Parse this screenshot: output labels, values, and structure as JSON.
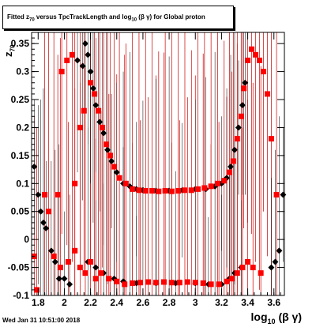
{
  "title_parts": {
    "pre": "Fitted  z",
    "sub1": "70",
    "mid": " versus TpcTrackLength and log",
    "sub2": "10",
    "post": " (β γ) for Global proton"
  },
  "ylabel_parts": {
    "main": "z",
    "sub": "70"
  },
  "xlabel_parts": {
    "main": "log",
    "sub": "10",
    "post": " (β γ)"
  },
  "footer": "Wed Jan 31 10:51:00 2018",
  "colors": {
    "series_black": "#000000",
    "series_red": "#ff0000",
    "errorbar_red": "#cc0000",
    "frame": "#000000"
  },
  "chart_data": {
    "type": "scatter",
    "title": "Fitted z70 versus TpcTrackLength and log10(βγ) for Global proton",
    "xlabel": "log10 (β γ)",
    "ylabel": "z70",
    "xlim": [
      1.75,
      3.68
    ],
    "ylim": [
      -0.1,
      0.37
    ],
    "x_ticks": [
      1.8,
      2.0,
      2.2,
      2.4,
      2.6,
      2.8,
      3.0,
      3.2,
      3.4,
      3.6
    ],
    "x_tick_labels": [
      "1.8",
      "2",
      "2.2",
      "2.4",
      "2.6",
      "2.8",
      "3",
      "3.2",
      "3.4",
      "3.6"
    ],
    "y_ticks": [
      -0.1,
      -0.05,
      0.0,
      0.05,
      0.1,
      0.15,
      0.2,
      0.25,
      0.3,
      0.35
    ],
    "y_tick_labels": [
      "-0.1",
      "-0.05",
      "0",
      "0.05",
      "0.1",
      "0.15",
      "0.2",
      "0.25",
      "0.3",
      "0.35"
    ],
    "grid": false,
    "series": [
      {
        "marker": "diamond",
        "color": "#000000",
        "points": [
          [
            1.77,
            0.13
          ],
          [
            1.8,
            0.08
          ],
          [
            1.82,
            0.05
          ],
          [
            1.84,
            0.03
          ],
          [
            1.86,
            0.02
          ],
          [
            1.9,
            -0.02
          ],
          [
            1.93,
            -0.04
          ],
          [
            1.96,
            -0.07
          ],
          [
            2.0,
            -0.07
          ],
          [
            2.04,
            -0.08
          ],
          [
            2.1,
            0.32
          ],
          [
            2.14,
            0.31
          ],
          [
            2.16,
            0.35
          ],
          [
            2.18,
            0.33
          ],
          [
            2.2,
            0.3
          ],
          [
            2.22,
            0.27
          ],
          [
            2.24,
            0.24
          ],
          [
            2.27,
            0.21
          ],
          [
            2.3,
            0.19
          ],
          [
            2.33,
            0.16
          ],
          [
            2.36,
            0.14
          ],
          [
            2.4,
            0.12
          ],
          [
            2.45,
            0.1
          ],
          [
            2.5,
            0.095
          ],
          [
            2.55,
            0.09
          ],
          [
            2.6,
            0.088
          ],
          [
            2.7,
            0.087
          ],
          [
            2.8,
            0.087
          ],
          [
            2.9,
            0.088
          ],
          [
            3.0,
            0.09
          ],
          [
            3.08,
            0.09
          ],
          [
            3.15,
            0.095
          ],
          [
            3.2,
            0.1
          ],
          [
            3.24,
            0.11
          ],
          [
            3.27,
            0.13
          ],
          [
            3.3,
            0.16
          ],
          [
            3.33,
            0.2
          ],
          [
            3.36,
            0.24
          ],
          [
            3.38,
            0.28
          ],
          [
            2.18,
            -0.04
          ],
          [
            2.24,
            -0.05
          ],
          [
            2.3,
            -0.06
          ],
          [
            2.38,
            -0.07
          ],
          [
            2.45,
            -0.075
          ],
          [
            2.55,
            -0.078
          ],
          [
            2.7,
            -0.078
          ],
          [
            2.85,
            -0.078
          ],
          [
            3.0,
            -0.078
          ],
          [
            3.1,
            -0.08
          ],
          [
            3.2,
            -0.08
          ],
          [
            3.26,
            -0.07
          ],
          [
            3.3,
            -0.06
          ],
          [
            3.35,
            -0.05
          ],
          [
            3.58,
            -0.05
          ],
          [
            3.61,
            -0.04
          ],
          [
            3.64,
            -0.02
          ],
          [
            3.67,
            0.08
          ]
        ]
      },
      {
        "marker": "square",
        "color": "#ff0000",
        "points": [
          [
            1.77,
            -0.03
          ],
          [
            1.79,
            -0.09
          ],
          [
            1.85,
            0.08
          ],
          [
            1.88,
            0.05
          ],
          [
            1.92,
            -0.03
          ],
          [
            1.95,
            0.08
          ],
          [
            1.98,
            0.3
          ],
          [
            2.02,
            0.32
          ],
          [
            2.06,
            0.33
          ],
          [
            2.08,
            0.1
          ],
          [
            2.12,
            0.2
          ],
          [
            2.15,
            0.23
          ],
          [
            2.2,
            0.28
          ],
          [
            2.23,
            0.26
          ],
          [
            2.26,
            0.23
          ],
          [
            2.29,
            0.2
          ],
          [
            2.32,
            0.17
          ],
          [
            2.35,
            0.15
          ],
          [
            2.38,
            0.13
          ],
          [
            2.42,
            0.11
          ],
          [
            2.47,
            0.1
          ],
          [
            2.52,
            0.09
          ],
          [
            2.57,
            0.088
          ],
          [
            2.62,
            0.087
          ],
          [
            2.67,
            0.087
          ],
          [
            2.72,
            0.086
          ],
          [
            2.77,
            0.087
          ],
          [
            2.82,
            0.086
          ],
          [
            2.87,
            0.087
          ],
          [
            2.92,
            0.088
          ],
          [
            2.97,
            0.088
          ],
          [
            3.02,
            0.09
          ],
          [
            3.07,
            0.092
          ],
          [
            3.12,
            0.095
          ],
          [
            3.17,
            0.1
          ],
          [
            3.22,
            0.105
          ],
          [
            3.26,
            0.12
          ],
          [
            3.29,
            0.14
          ],
          [
            3.32,
            0.18
          ],
          [
            3.35,
            0.22
          ],
          [
            3.37,
            0.27
          ],
          [
            3.4,
            0.32
          ],
          [
            3.43,
            0.34
          ],
          [
            3.46,
            0.33
          ],
          [
            3.49,
            0.32
          ],
          [
            3.52,
            0.3
          ],
          [
            3.55,
            0.26
          ],
          [
            3.58,
            0.18
          ],
          [
            3.62,
            0.08
          ],
          [
            1.97,
            -0.05
          ],
          [
            2.03,
            -0.04
          ],
          [
            2.08,
            -0.02
          ],
          [
            2.12,
            -0.05
          ],
          [
            2.16,
            -0.06
          ],
          [
            2.2,
            -0.04
          ],
          [
            2.24,
            -0.07
          ],
          [
            2.28,
            -0.06
          ],
          [
            2.34,
            -0.07
          ],
          [
            2.4,
            -0.075
          ],
          [
            2.46,
            -0.08
          ],
          [
            2.52,
            -0.078
          ],
          [
            2.58,
            -0.077
          ],
          [
            2.64,
            -0.076
          ],
          [
            2.7,
            -0.077
          ],
          [
            2.76,
            -0.076
          ],
          [
            2.82,
            -0.077
          ],
          [
            2.88,
            -0.077
          ],
          [
            2.94,
            -0.076
          ],
          [
            3.0,
            -0.077
          ],
          [
            3.06,
            -0.078
          ],
          [
            3.12,
            -0.08
          ],
          [
            3.18,
            -0.08
          ],
          [
            3.24,
            -0.075
          ],
          [
            3.28,
            -0.07
          ],
          [
            3.32,
            -0.06
          ],
          [
            3.36,
            -0.05
          ],
          [
            3.4,
            -0.04
          ],
          [
            3.44,
            -0.05
          ],
          [
            3.5,
            -0.06
          ]
        ]
      }
    ]
  }
}
